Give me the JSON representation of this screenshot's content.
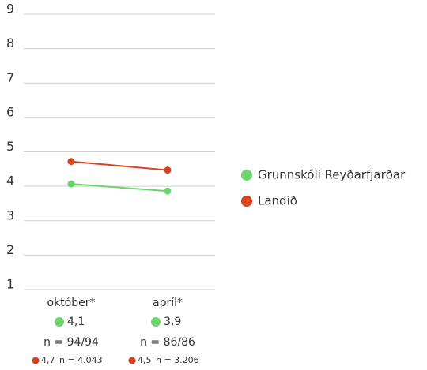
{
  "chart_data": {
    "type": "line",
    "categories": [
      "október*",
      "apríl*"
    ],
    "series": [
      {
        "name": "Grunnskóli Reyðarfjarðar",
        "color": "#6cd66c",
        "values": [
          4.07,
          3.86
        ],
        "value_labels": [
          "4,1",
          "3,9"
        ],
        "sample_sizes": [
          "n = 94/94",
          "n = 86/86"
        ]
      },
      {
        "name": "Landið",
        "color": "#d9401e",
        "values": [
          4.72,
          4.47
        ],
        "value_labels": [
          "4,7",
          "4,5"
        ],
        "sample_sizes": [
          "n = 4.043",
          "n = 3.206"
        ]
      }
    ],
    "ylim": [
      1,
      9
    ],
    "yticks": [
      1,
      2,
      3,
      4,
      5,
      6,
      7,
      8,
      9
    ],
    "grid": true,
    "legend": "right"
  }
}
